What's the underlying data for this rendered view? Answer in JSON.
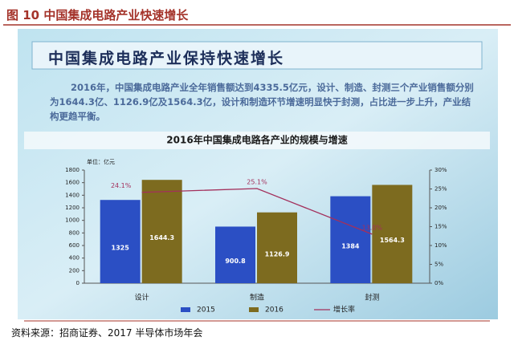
{
  "header": {
    "title": "图 10  中国集成电路产业快速增长"
  },
  "slide": {
    "heading": "中国集成电路产业保持快速增长",
    "paragraph": "2016年，中国集成电路产业全年销售额达到4335.5亿元，设计、制造、封测三个产业销售额分别为1644.3亿、1126.9亿及1564.3亿，设计和制造环节增速明显快于封测，占比进一步上升，产业结构更趋平衡。"
  },
  "chart_data": {
    "type": "bar",
    "title": "2016年中国集成电路各产业的规模与增速",
    "unit_label": "单位：亿元",
    "categories": [
      "设计",
      "制造",
      "封测"
    ],
    "series": [
      {
        "name": "2015",
        "color": "#2b4fc4",
        "values": [
          1325,
          900.8,
          1384
        ]
      },
      {
        "name": "2016",
        "color": "#7d6b1f",
        "values": [
          1644.3,
          1126.9,
          1564.3
        ]
      },
      {
        "name": "增长率",
        "type": "line",
        "axis": "y2",
        "color": "#a3305c",
        "values": [
          24.1,
          25.1,
          13.0
        ],
        "value_labels": [
          "24.1%",
          "25.1%",
          "13.0%"
        ]
      }
    ],
    "ylim": [
      0,
      1800
    ],
    "yticks": [
      0,
      200,
      400,
      600,
      800,
      1000,
      1200,
      1400,
      1600,
      1800
    ],
    "y2lim": [
      0,
      30
    ],
    "y2ticks": [
      {
        "value": 0,
        "label": "0%"
      },
      {
        "value": 5,
        "label": "5%"
      },
      {
        "value": 10,
        "label": "10%"
      },
      {
        "value": 15,
        "label": "15%"
      },
      {
        "value": 20,
        "label": "20%"
      },
      {
        "value": 25,
        "label": "25%"
      },
      {
        "value": 30,
        "label": "30%"
      }
    ],
    "legend": "bottom"
  },
  "footer": {
    "source": "资料来源：招商证券、2017 半导体市场年会"
  }
}
